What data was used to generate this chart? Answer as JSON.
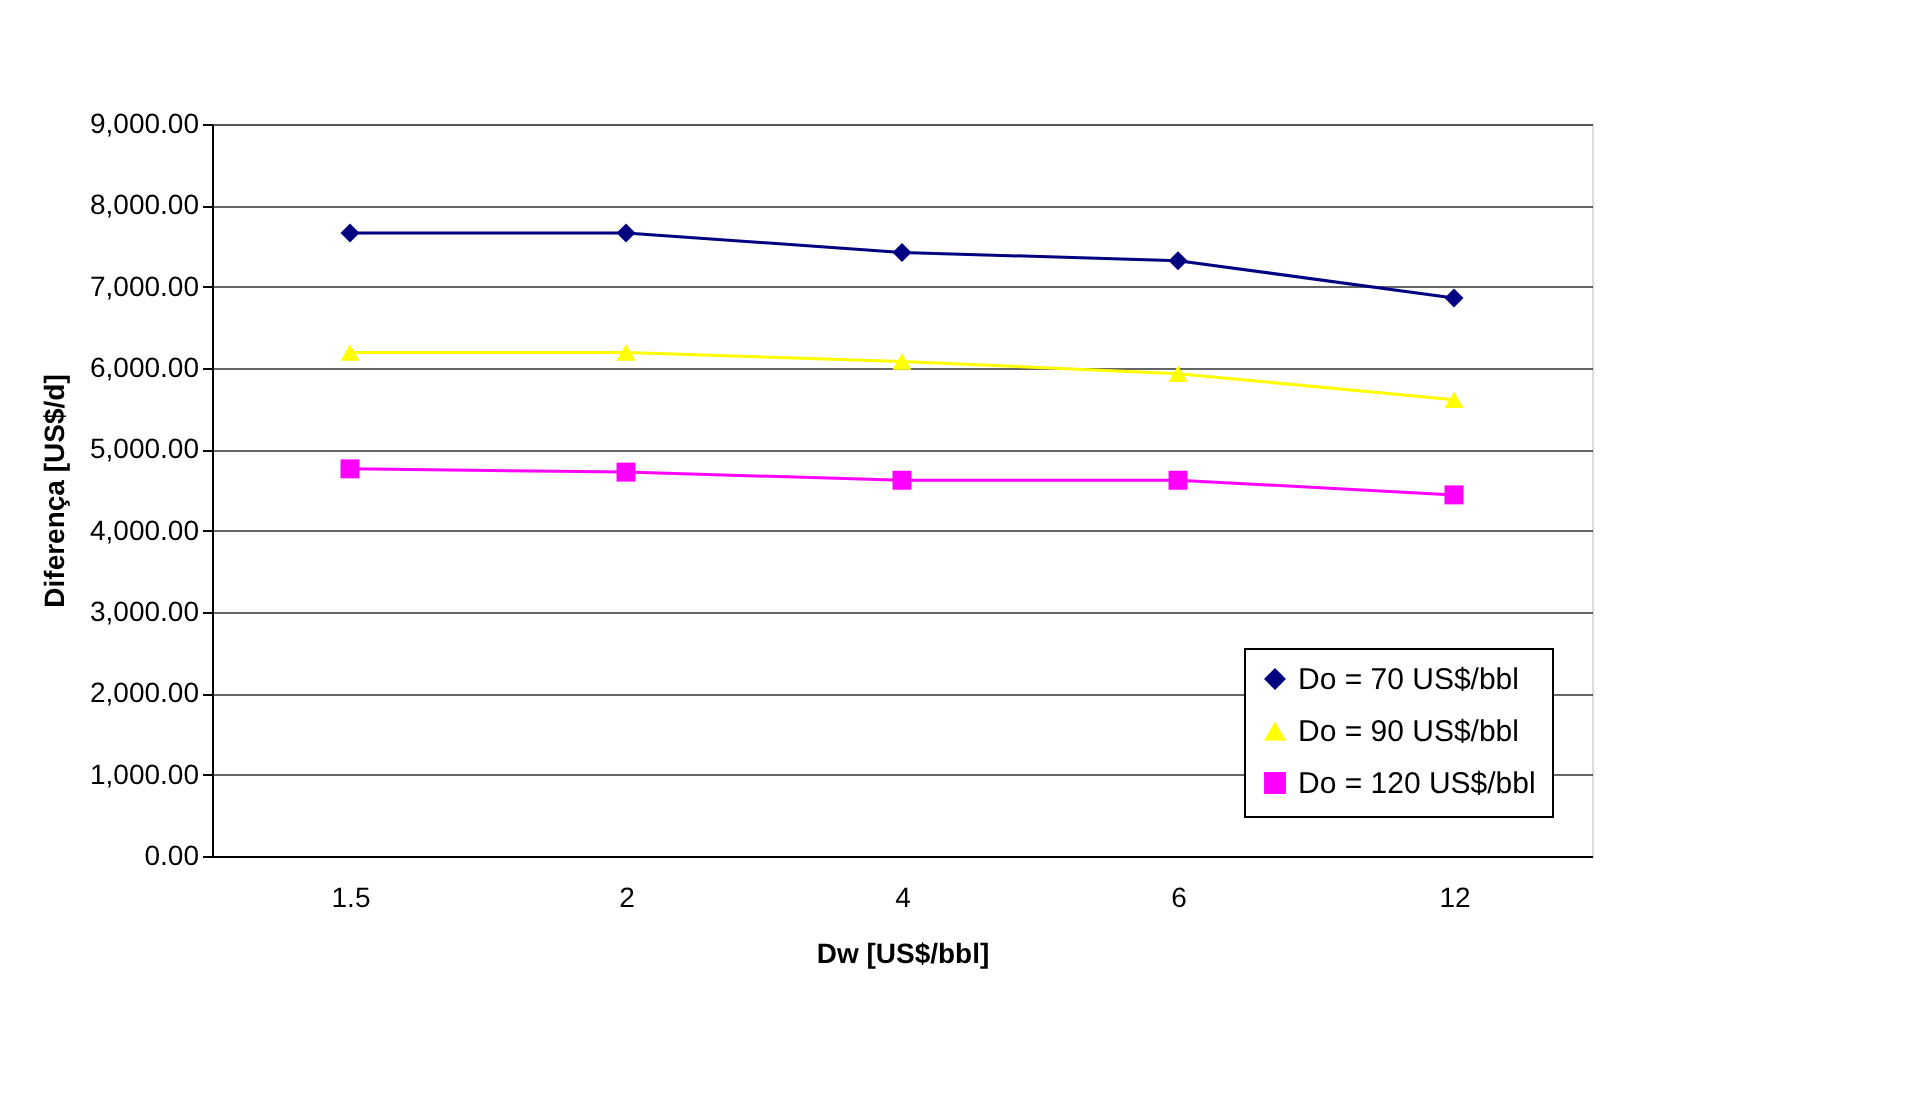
{
  "chart_data": {
    "type": "line",
    "xlabel": "Dw [US$/bbl]",
    "ylabel": "Diferença [US$/d]",
    "categories": [
      "1.5",
      "2",
      "4",
      "6",
      "12"
    ],
    "ylim": [
      0,
      9000
    ],
    "yticks": [
      {
        "value": 0,
        "label": "0.00"
      },
      {
        "value": 1000,
        "label": "1,000.00"
      },
      {
        "value": 2000,
        "label": "2,000.00"
      },
      {
        "value": 3000,
        "label": "3,000.00"
      },
      {
        "value": 4000,
        "label": "4,000.00"
      },
      {
        "value": 5000,
        "label": "5,000.00"
      },
      {
        "value": 6000,
        "label": "6,000.00"
      },
      {
        "value": 7000,
        "label": "7,000.00"
      },
      {
        "value": 8000,
        "label": "8,000.00"
      },
      {
        "value": 9000,
        "label": "9,000.00"
      }
    ],
    "grid": "y",
    "legend": "bottom right",
    "line_style": "solid",
    "series": [
      {
        "name": "Do = 70 US$/bbl",
        "color": "#000080",
        "marker": "diamond",
        "values": [
          7660,
          7660,
          7420,
          7320,
          6860
        ]
      },
      {
        "name": "Do = 90 US$/bbl",
        "color": "#ffff00",
        "marker": "triangle",
        "values": [
          6190,
          6190,
          6080,
          5930,
          5610
        ]
      },
      {
        "name": "Do = 120 US$/bbl",
        "color": "#ff00ff",
        "marker": "square",
        "values": [
          4760,
          4720,
          4620,
          4620,
          4440
        ]
      }
    ]
  }
}
